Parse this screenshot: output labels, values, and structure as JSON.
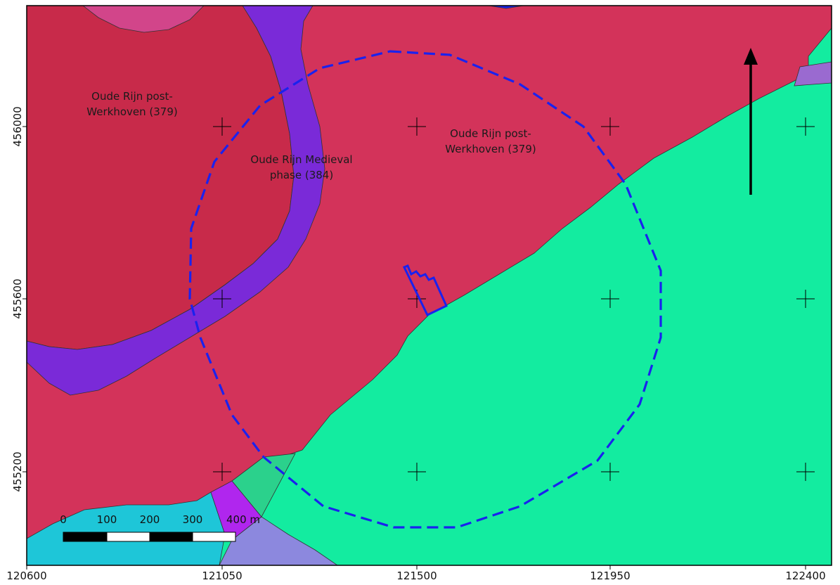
{
  "map": {
    "unit_colors": {
      "oude_rijn_post_werkhoven": "#d3335a",
      "oude_rijn_post_werkhoven_dark": "#c82a4a",
      "oude_rijn_medieval": "#7a2ad8",
      "floodbasin": "#13eca0",
      "unit_blue": "#1ec6d8",
      "unit_magenta": "#d2458a",
      "unit_lavender": "#8c88de",
      "unit_violet": "#b026ee",
      "unit_lilac": "#9a6ad0",
      "unit_mint": "#2bd18c"
    },
    "labels": {
      "west_unit": [
        "Oude Rijn post-",
        "Werkhoven (379)"
      ],
      "medieval_unit": [
        "Oude Rijn Medieval",
        "phase (384)"
      ],
      "east_unit": [
        "Oude Rijn post-",
        "Werkhoven (379)"
      ]
    },
    "x_ticks": [
      "120600",
      "121050",
      "121500",
      "121950",
      "122400"
    ],
    "y_ticks": [
      "456000",
      "455600",
      "455200"
    ],
    "scale_bar": {
      "labels": [
        "0",
        "100",
        "200",
        "300",
        "400 m"
      ]
    },
    "overlay_colors": {
      "buffer_circle": "#1a22ee",
      "site_outline": "#1a22ee",
      "north_arrow": "#000000"
    }
  }
}
